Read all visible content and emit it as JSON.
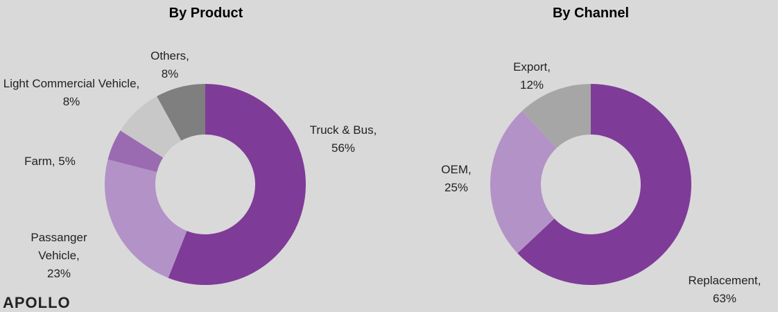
{
  "chart_data": [
    {
      "type": "donut",
      "title": "By Product",
      "categories": [
        "Truck & Bus,",
        "Passanger Vehicle,",
        "Farm,",
        "Light Commercial Vehicle,",
        "Others,"
      ],
      "values": [
        56,
        23,
        5,
        8,
        8
      ],
      "value_labels": [
        "56%",
        "23%",
        "5%",
        "8%",
        "8%"
      ],
      "colors": [
        "#7f3b98",
        "#b392c8",
        "#9a6bb0",
        "#c8c8c8",
        "#7f7f7f"
      ]
    },
    {
      "type": "donut",
      "title": "By Channel",
      "categories": [
        "Replacement,",
        "OEM,",
        "Export,"
      ],
      "values": [
        63,
        25,
        12
      ],
      "value_labels": [
        "63%",
        "25%",
        "12%"
      ],
      "colors": [
        "#7f3b98",
        "#b392c8",
        "#a6a6a6"
      ]
    }
  ],
  "logo": "APOLLO"
}
